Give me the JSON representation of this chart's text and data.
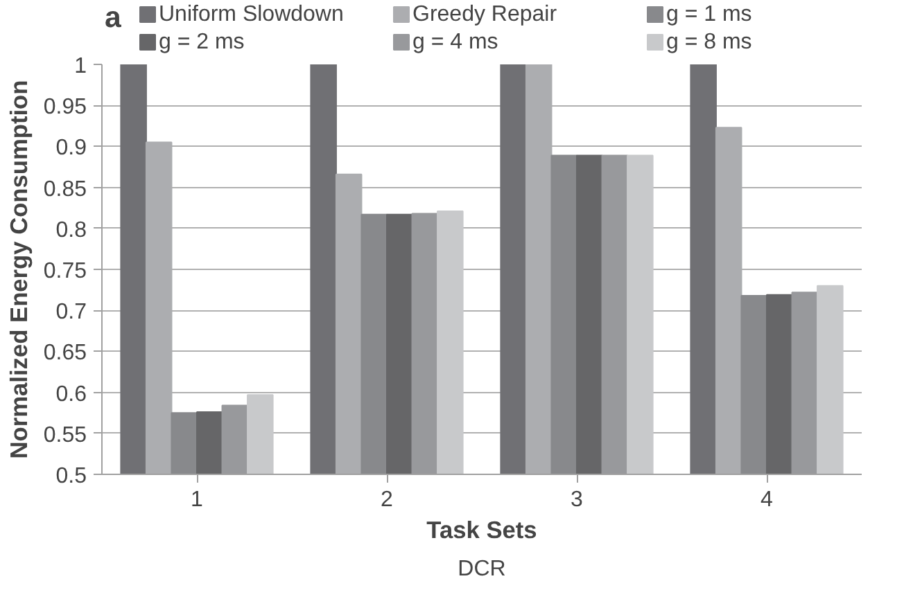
{
  "chart_data": {
    "type": "bar",
    "title": "a",
    "xlabel": "Task Sets",
    "ylabel": "Normalized Energy Consumption",
    "annotations": [
      "DCR"
    ],
    "categories": [
      "1",
      "2",
      "3",
      "4"
    ],
    "series": [
      {
        "name": "Uniform Slowdown",
        "color": "#707074",
        "values": [
          1,
          1,
          1,
          1
        ]
      },
      {
        "name": "Greedy Repair",
        "color": "#acadb0",
        "values": [
          0.905,
          0.866,
          1,
          0.923
        ]
      },
      {
        "name": "g = 1 ms",
        "color": "#88898c",
        "values": [
          0.575,
          0.817,
          0.889,
          0.718
        ]
      },
      {
        "name": "g = 2 ms",
        "color": "#666668",
        "values": [
          0.576,
          0.817,
          0.889,
          0.719
        ]
      },
      {
        "name": "g = 4 ms",
        "color": "#98999c",
        "values": [
          0.584,
          0.818,
          0.889,
          0.722
        ]
      },
      {
        "name": "g = 8 ms",
        "color": "#c8c9cb",
        "values": [
          0.597,
          0.821,
          0.889,
          0.73
        ]
      }
    ],
    "ylim": [
      0.5,
      1
    ],
    "yticks": [
      0.5,
      0.55,
      0.6,
      0.65,
      0.7,
      0.75,
      0.8,
      0.85,
      0.9,
      0.95,
      1
    ],
    "grid": "y",
    "legend": "top"
  }
}
